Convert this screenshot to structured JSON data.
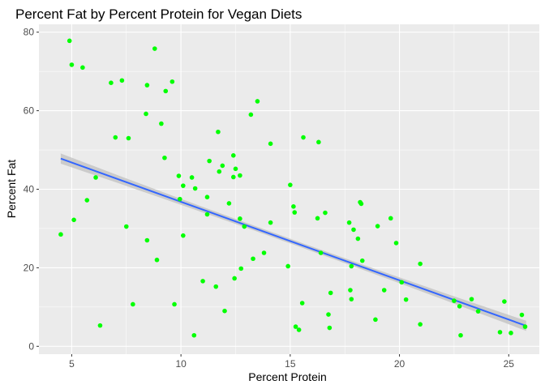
{
  "chart_data": {
    "type": "scatter",
    "title": "Percent Fat by Percent Protein for Vegan Diets",
    "xlabel": "Percent Protein",
    "ylabel": "Percent Fat",
    "xlim": [
      3.5,
      26.4
    ],
    "ylim": [
      -2,
      82
    ],
    "x_ticks": [
      5,
      10,
      15,
      20,
      25
    ],
    "y_ticks": [
      0,
      20,
      40,
      60,
      80
    ],
    "x_tick_labels": [
      "5",
      "10",
      "15",
      "20",
      "25"
    ],
    "y_tick_labels": [
      "0",
      "20",
      "40",
      "60",
      "80"
    ],
    "grid": true,
    "colors": {
      "panel_background": "#ebebeb",
      "grid_major": "#ffffff",
      "points": "#00ff00",
      "trend_line": "#3366ff",
      "confidence_band": "#c6c6c6"
    },
    "trend_line": {
      "method": "linear",
      "x": [
        4.5,
        25.8
      ],
      "y": [
        47.8,
        5.2
      ],
      "band_halfwidth_ends": 1.3,
      "band_halfwidth_center": 0.6
    },
    "points": [
      {
        "x": 4.5,
        "y": 28.5
      },
      {
        "x": 4.9,
        "y": 77.8
      },
      {
        "x": 5.0,
        "y": 71.7
      },
      {
        "x": 5.1,
        "y": 32.2
      },
      {
        "x": 5.5,
        "y": 71.0
      },
      {
        "x": 5.7,
        "y": 37.2
      },
      {
        "x": 6.1,
        "y": 43.0
      },
      {
        "x": 6.3,
        "y": 5.3
      },
      {
        "x": 6.8,
        "y": 67.1
      },
      {
        "x": 7.0,
        "y": 53.2
      },
      {
        "x": 7.3,
        "y": 67.7
      },
      {
        "x": 7.5,
        "y": 30.5
      },
      {
        "x": 7.6,
        "y": 53.0
      },
      {
        "x": 7.8,
        "y": 10.7
      },
      {
        "x": 8.4,
        "y": 59.2
      },
      {
        "x": 8.45,
        "y": 66.5
      },
      {
        "x": 8.45,
        "y": 27.0
      },
      {
        "x": 8.8,
        "y": 75.8
      },
      {
        "x": 8.9,
        "y": 22.0
      },
      {
        "x": 9.1,
        "y": 56.7
      },
      {
        "x": 9.25,
        "y": 48.0
      },
      {
        "x": 9.3,
        "y": 65.0
      },
      {
        "x": 9.6,
        "y": 67.4
      },
      {
        "x": 9.7,
        "y": 10.7
      },
      {
        "x": 9.9,
        "y": 43.4
      },
      {
        "x": 9.95,
        "y": 37.5
      },
      {
        "x": 10.1,
        "y": 28.2
      },
      {
        "x": 10.1,
        "y": 40.9
      },
      {
        "x": 10.5,
        "y": 43.0
      },
      {
        "x": 10.6,
        "y": 2.8
      },
      {
        "x": 10.65,
        "y": 40.2
      },
      {
        "x": 11.0,
        "y": 16.6
      },
      {
        "x": 11.2,
        "y": 38.0
      },
      {
        "x": 11.2,
        "y": 33.6
      },
      {
        "x": 11.3,
        "y": 47.2
      },
      {
        "x": 11.6,
        "y": 15.2
      },
      {
        "x": 11.7,
        "y": 54.6
      },
      {
        "x": 11.75,
        "y": 44.5
      },
      {
        "x": 11.9,
        "y": 46.0
      },
      {
        "x": 12.0,
        "y": 9.0
      },
      {
        "x": 12.2,
        "y": 36.4
      },
      {
        "x": 12.4,
        "y": 43.1
      },
      {
        "x": 12.4,
        "y": 48.6
      },
      {
        "x": 12.45,
        "y": 17.3
      },
      {
        "x": 12.5,
        "y": 45.2
      },
      {
        "x": 12.7,
        "y": 43.5
      },
      {
        "x": 12.7,
        "y": 32.5
      },
      {
        "x": 12.75,
        "y": 19.8
      },
      {
        "x": 12.9,
        "y": 30.5
      },
      {
        "x": 13.2,
        "y": 59.0
      },
      {
        "x": 13.3,
        "y": 22.3
      },
      {
        "x": 13.5,
        "y": 62.4
      },
      {
        "x": 13.8,
        "y": 23.8
      },
      {
        "x": 14.1,
        "y": 51.6
      },
      {
        "x": 14.1,
        "y": 31.5
      },
      {
        "x": 14.9,
        "y": 20.4
      },
      {
        "x": 15.0,
        "y": 41.1
      },
      {
        "x": 15.15,
        "y": 35.6
      },
      {
        "x": 15.2,
        "y": 34.1
      },
      {
        "x": 15.25,
        "y": 5.0
      },
      {
        "x": 15.4,
        "y": 4.2
      },
      {
        "x": 15.55,
        "y": 11.0
      },
      {
        "x": 15.6,
        "y": 53.2
      },
      {
        "x": 16.25,
        "y": 32.6
      },
      {
        "x": 16.3,
        "y": 52.0
      },
      {
        "x": 16.4,
        "y": 23.8
      },
      {
        "x": 16.6,
        "y": 34.0
      },
      {
        "x": 16.75,
        "y": 8.1
      },
      {
        "x": 16.8,
        "y": 4.7
      },
      {
        "x": 16.85,
        "y": 13.6
      },
      {
        "x": 17.7,
        "y": 31.5
      },
      {
        "x": 17.75,
        "y": 14.3
      },
      {
        "x": 17.8,
        "y": 12.0
      },
      {
        "x": 17.8,
        "y": 20.4
      },
      {
        "x": 17.9,
        "y": 29.7
      },
      {
        "x": 18.1,
        "y": 27.4
      },
      {
        "x": 18.2,
        "y": 36.7
      },
      {
        "x": 18.25,
        "y": 36.3
      },
      {
        "x": 18.3,
        "y": 21.8
      },
      {
        "x": 18.9,
        "y": 6.8
      },
      {
        "x": 19.0,
        "y": 30.6
      },
      {
        "x": 19.3,
        "y": 14.3
      },
      {
        "x": 19.6,
        "y": 32.6
      },
      {
        "x": 19.85,
        "y": 26.3
      },
      {
        "x": 20.1,
        "y": 16.3
      },
      {
        "x": 20.3,
        "y": 11.9
      },
      {
        "x": 20.95,
        "y": 5.6
      },
      {
        "x": 20.95,
        "y": 21.0
      },
      {
        "x": 22.5,
        "y": 11.6
      },
      {
        "x": 22.75,
        "y": 10.2
      },
      {
        "x": 22.8,
        "y": 2.8
      },
      {
        "x": 23.3,
        "y": 12.0
      },
      {
        "x": 23.6,
        "y": 8.9
      },
      {
        "x": 24.6,
        "y": 3.6
      },
      {
        "x": 24.8,
        "y": 11.4
      },
      {
        "x": 25.1,
        "y": 3.4
      },
      {
        "x": 25.6,
        "y": 8.0
      },
      {
        "x": 25.75,
        "y": 5.0
      }
    ]
  }
}
